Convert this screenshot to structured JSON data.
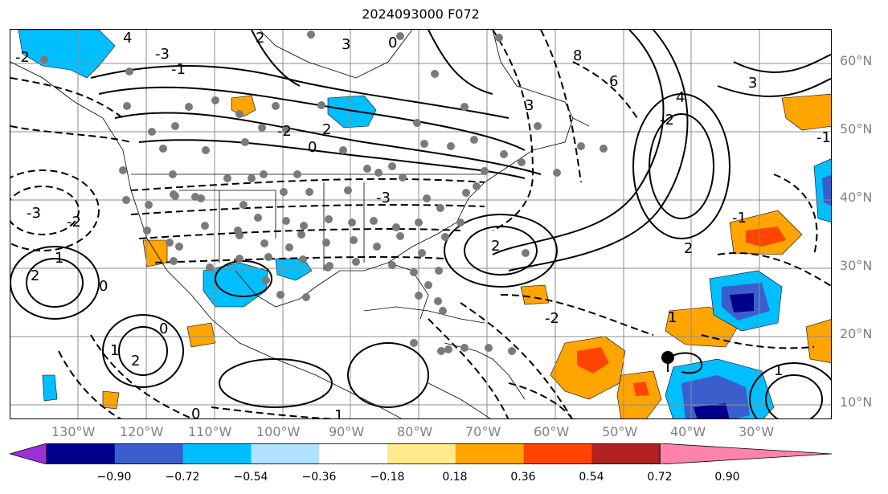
{
  "title": "2024093000 F072",
  "longitude_labels": [
    "130°W",
    "120°W",
    "110°W",
    "100°W",
    "90°W",
    "80°W",
    "70°W",
    "60°W",
    "50°W",
    "40°W",
    "30°W"
  ],
  "latitude_labels": [
    "60°N",
    "50°N",
    "40°N",
    "30°N",
    "20°N",
    "10°N"
  ],
  "colorbar": {
    "ticks": [
      "−0.90",
      "−0.72",
      "−0.54",
      "−0.36",
      "−0.18",
      "0.18",
      "0.36",
      "0.54",
      "0.72",
      "0.90"
    ],
    "colors": [
      "#9b30d9",
      "#00008b",
      "#3a5fcd",
      "#00bfff",
      "#b0e2ff",
      "#ffffff",
      "#ffe98a",
      "#ffa500",
      "#ff4500",
      "#b22222",
      "#ff82ab"
    ]
  },
  "contour_labels": [
    "-2",
    "4",
    "-3",
    "-1",
    "2",
    "3",
    "0",
    "8",
    "6",
    "4",
    "3",
    "2",
    "-2",
    "-3",
    "2",
    "-2",
    "-3",
    "0",
    "1",
    "2",
    "-2",
    "-2",
    "1",
    "2",
    "0",
    "1",
    "2",
    "-1",
    "-1",
    "3",
    "1",
    "0",
    "1",
    "0"
  ],
  "marker_color": "#000000"
}
